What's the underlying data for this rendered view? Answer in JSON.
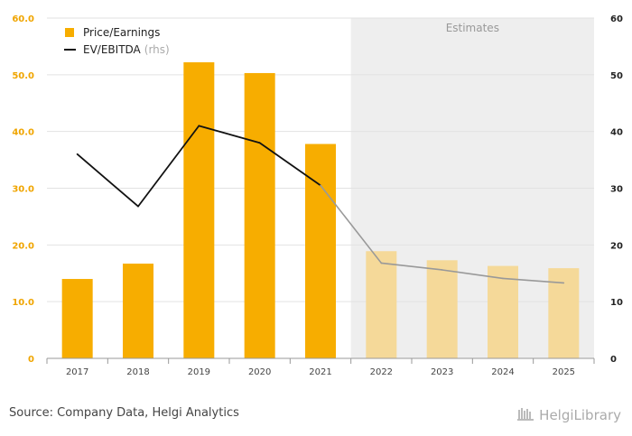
{
  "chart_data": {
    "type": "bar",
    "categories": [
      "2017",
      "2018",
      "2019",
      "2020",
      "2021",
      "2022",
      "2023",
      "2024",
      "2025"
    ],
    "series": [
      {
        "name": "Price/Earnings",
        "type": "bar",
        "axis": "left",
        "values": [
          14.0,
          16.7,
          52.2,
          50.3,
          37.8,
          18.9,
          17.3,
          16.3,
          15.9
        ]
      },
      {
        "name": "EV/EBITDA",
        "type": "line",
        "axis": "right",
        "values": [
          36.0,
          26.8,
          41.0,
          38.0,
          30.5,
          16.8,
          15.6,
          14.1,
          13.3
        ]
      }
    ],
    "estimate_categories": [
      "2022",
      "2023",
      "2024",
      "2025"
    ],
    "estimates_label": "Estimates",
    "left_axis": {
      "ylim": [
        0,
        60
      ],
      "ticks": [
        "0",
        "10.0",
        "20.0",
        "30.0",
        "40.0",
        "50.0",
        "60.0"
      ]
    },
    "right_axis": {
      "ylim": [
        0,
        60
      ],
      "ticks": [
        "0",
        "10",
        "20",
        "30",
        "40",
        "50",
        "60"
      ]
    },
    "legend": {
      "placement": "top-left",
      "items": [
        {
          "label": "Price/Earnings",
          "suffix": ""
        },
        {
          "label": "EV/EBITDA",
          "suffix": "(rhs)"
        }
      ]
    },
    "colors": {
      "bar": "#f7ad00",
      "bar_estimate": "#f5d999",
      "line": "#111111",
      "line_estimate": "#999999",
      "estimate_band": "#eeeeee"
    },
    "grid": true
  },
  "footer": {
    "source": "Source: Company Data, Helgi Analytics",
    "brand": "HelgiLibrary"
  }
}
